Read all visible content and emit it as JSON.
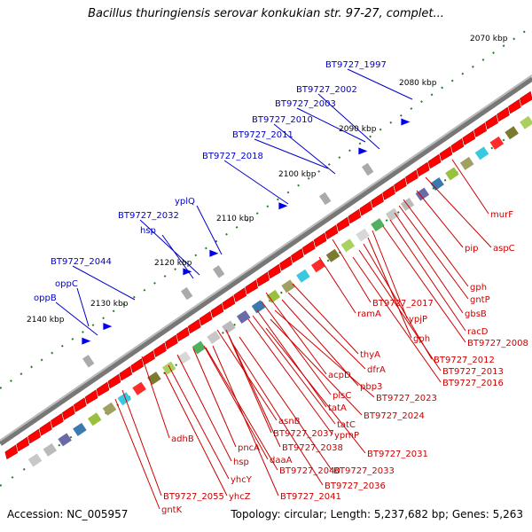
{
  "title": "Bacillus thuringiensis serovar konkukian str. 97-27, complet...",
  "footer": {
    "accession": "Accession: NC_005957",
    "summary": "Topology: circular; Length: 5,237,682 bp; Genes: 5,263"
  },
  "colors": {
    "backbone": "#808080",
    "gene_forward": "#ff0000",
    "gene_neutral": "#c8c8c8",
    "label_blue": "#0000cc",
    "label_red": "#cc0000",
    "tick_green": "#2a7a2a"
  },
  "scale_labels": [
    "2070 kbp",
    "2080 kbp",
    "2090 kbp",
    "2100 kbp",
    "2110 kbp",
    "2120 kbp",
    "2130 kbp",
    "2140 kbp"
  ],
  "outer_labels": [
    "BT9727_1997",
    "BT9727_2002",
    "BT9727_2003",
    "BT9727_2010",
    "BT9727_2011",
    "BT9727_2018",
    "yplQ",
    "BT9727_2032",
    "hsp",
    "BT9727_2044",
    "oppC",
    "oppB"
  ],
  "inner_labels": [
    "murF",
    "pip",
    "aspC",
    "gph",
    "gntP",
    "gbsB",
    "racD",
    "BT9727_2008",
    "BT9727_2017",
    "ramA",
    "ypjP",
    "gph",
    "BT9727_2012",
    "BT9727_2013",
    "BT9727_2016",
    "thyA",
    "dfrA",
    "pbp3",
    "acpD",
    "plsC",
    "BT9727_2023",
    "tatA",
    "BT9727_2024",
    "tatC",
    "asnB",
    "ypmP",
    "BT9727_2037",
    "BT9727_2038",
    "BT9727_2031",
    "pncA",
    "adhB",
    "hsp",
    "daaA",
    "BT9727_2040",
    "BT9727_2033",
    "yhcY",
    "BT9727_2036",
    "yhcZ",
    "BT9727_2041",
    "BT9727_2055",
    "gntK"
  ]
}
